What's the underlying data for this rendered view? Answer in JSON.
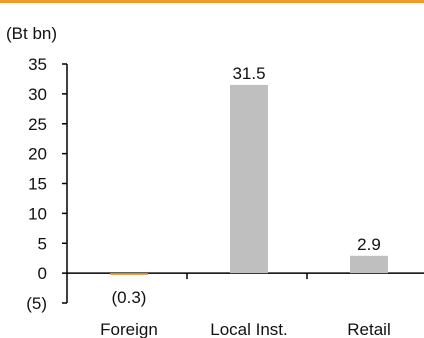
{
  "chart_data": {
    "type": "bar",
    "unit_label": "(Bt bn)",
    "categories": [
      "Foreign",
      "Local Inst.",
      "Retail"
    ],
    "values": [
      -0.3,
      31.5,
      2.9
    ],
    "data_labels": [
      "(0.3)",
      "31.5",
      "2.9"
    ],
    "yticks": [
      35,
      30,
      25,
      20,
      15,
      10,
      5,
      0,
      -5
    ],
    "ytick_labels": [
      "35",
      "30",
      "25",
      "20",
      "15",
      "10",
      "5",
      "0",
      "(5)"
    ],
    "ylim": [
      -5,
      35
    ],
    "colors": {
      "positive": "#bfbfbf",
      "negative": "#f39a2b",
      "axis": "#000000",
      "top_strip": "#f39a2b"
    },
    "grid": false
  }
}
